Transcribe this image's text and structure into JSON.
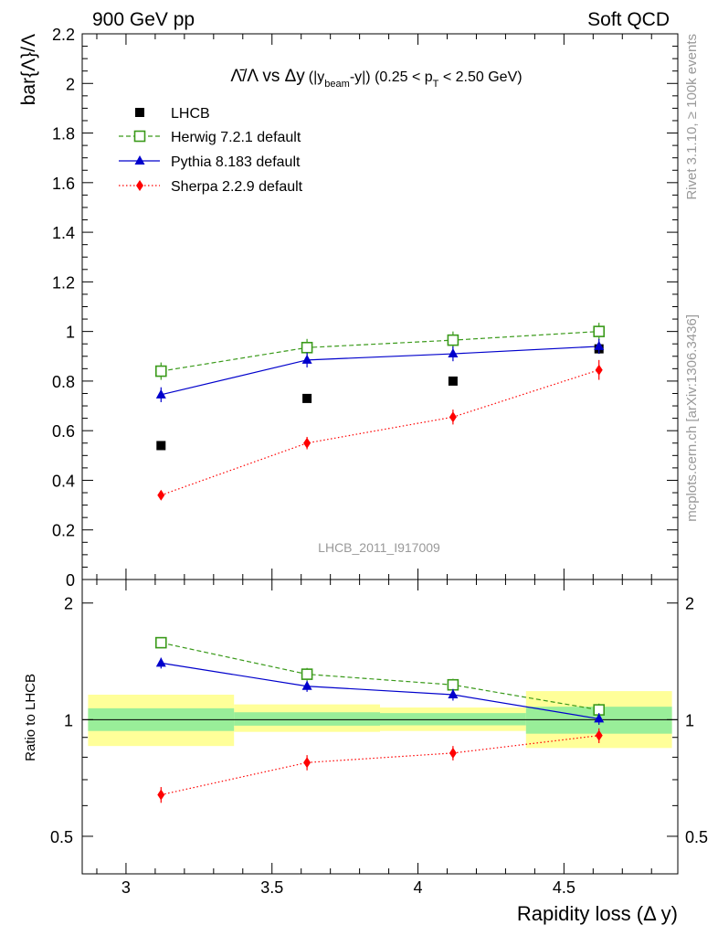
{
  "header": {
    "left": "900 GeV pp",
    "right": "Soft QCD"
  },
  "side_labels": {
    "rivet": "Rivet 3.1.10, ≥ 100k events",
    "mcplots": "mcplots.cern.ch [arXiv:1306.3436]"
  },
  "title": {
    "main": "Λ̄/Λ vs Δy",
    "paren_open": "(|y",
    "sub_beam": "beam",
    "paren_mid": "-y|) (0.25 < p",
    "sub_T": "T",
    "paren_close": " < 2.50 GeV)"
  },
  "analysis_id": "LHCB_2011_I917009",
  "colors": {
    "lhcb": "#000000",
    "herwig": "#3a9a1a",
    "pythia": "#0000cc",
    "sherpa": "#ff0000",
    "band_inner": "#99ee99",
    "band_outer": "#ffff99"
  },
  "chart_data": {
    "type": "scatter",
    "x": [
      3.12,
      3.62,
      4.12,
      4.62
    ],
    "bin_edges": [
      2.87,
      3.37,
      3.87,
      4.37,
      4.87
    ],
    "xlim": [
      2.85,
      4.89
    ],
    "xticks": [
      3,
      3.5,
      4,
      4.5
    ],
    "xtick_labels": [
      "3",
      "3.5",
      "4",
      "4.5"
    ],
    "xlabel": "Rapidity loss (Δ y)",
    "main": {
      "ylabel": "bar{Λ}/Λ",
      "ylim": [
        0,
        2.2
      ],
      "yticks": [
        0,
        0.2,
        0.4,
        0.6,
        0.8,
        1,
        1.2,
        1.4,
        1.6,
        1.8,
        2,
        2.2
      ],
      "ytick_labels": [
        "0",
        "0.2",
        "0.4",
        "0.6",
        "0.8",
        "1",
        "1.2",
        "1.4",
        "1.6",
        "1.8",
        "2",
        "2.2"
      ],
      "series": [
        {
          "name": "LHCB",
          "key": "lhcb",
          "values": [
            0.54,
            0.73,
            0.8,
            0.93
          ],
          "errors": [
            0.01,
            0.01,
            0.01,
            0.02
          ]
        },
        {
          "name": "Herwig 7.2.1 default",
          "key": "herwig",
          "values": [
            0.84,
            0.935,
            0.965,
            1.0
          ],
          "errors": [
            0.035,
            0.035,
            0.035,
            0.035
          ]
        },
        {
          "name": "Pythia 8.183 default",
          "key": "pythia",
          "values": [
            0.745,
            0.885,
            0.91,
            0.94
          ],
          "errors": [
            0.03,
            0.03,
            0.03,
            0.03
          ]
        },
        {
          "name": "Sherpa 2.2.9 default",
          "key": "sherpa",
          "values": [
            0.34,
            0.55,
            0.655,
            0.845
          ],
          "errors": [
            0.015,
            0.025,
            0.03,
            0.04
          ]
        }
      ]
    },
    "ratio": {
      "ylabel": "Ratio to LHCB",
      "ylim": [
        0.4,
        2.3
      ],
      "scale": "log",
      "yticks": [
        0.5,
        1,
        2
      ],
      "ytick_labels": [
        "0.5",
        "1",
        "2"
      ],
      "band_inner": [
        [
          0.935,
          1.07
        ],
        [
          0.965,
          1.045
        ],
        [
          0.967,
          1.04
        ],
        [
          0.92,
          1.08
        ]
      ],
      "band_outer": [
        [
          0.855,
          1.16
        ],
        [
          0.93,
          1.095
        ],
        [
          0.935,
          1.075
        ],
        [
          0.845,
          1.185
        ]
      ],
      "series": [
        {
          "name": "Herwig 7.2.1 default",
          "key": "herwig",
          "values": [
            1.58,
            1.31,
            1.23,
            1.06
          ],
          "errors": [
            0.05,
            0.05,
            0.045,
            0.04
          ]
        },
        {
          "name": "Pythia 8.183 default",
          "key": "pythia",
          "values": [
            1.4,
            1.22,
            1.16,
            1.005
          ],
          "errors": [
            0.045,
            0.04,
            0.04,
            0.035
          ]
        },
        {
          "name": "Sherpa 2.2.9 default",
          "key": "sherpa",
          "values": [
            0.64,
            0.775,
            0.82,
            0.91
          ],
          "errors": [
            0.03,
            0.035,
            0.035,
            0.04
          ]
        }
      ]
    }
  }
}
